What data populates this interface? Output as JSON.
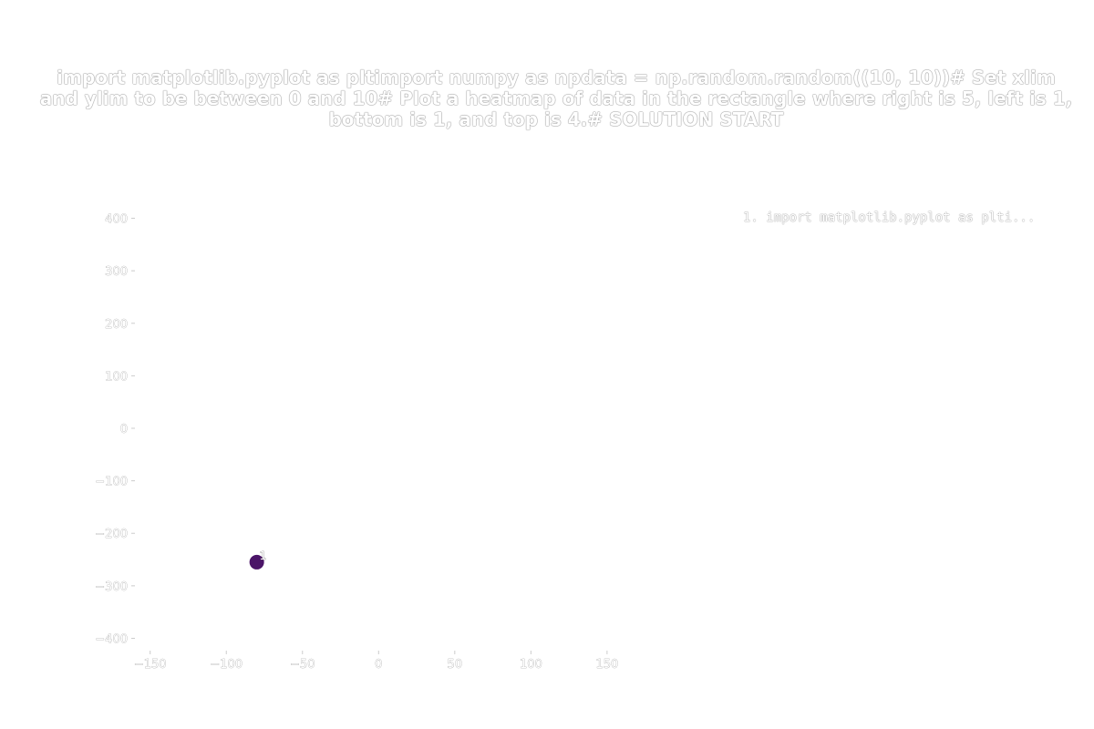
{
  "chart_data": {
    "type": "scatter",
    "title": "import matplotlib.pyplot as pltimport numpy as npdata = np.random.random((10, 10))# Set xlim and ylim to be between 0 and 10# Plot a heatmap of data in the rectangle where right is 5, left is 1, bottom is 1, and top is 4.# SOLUTION START",
    "xlabel": "",
    "ylabel": "",
    "xlim": [
      -160,
      180
    ],
    "ylim": [
      -420,
      420
    ],
    "x_ticks": [
      -150,
      -100,
      -50,
      0,
      50,
      100,
      150
    ],
    "y_ticks": [
      -400,
      -300,
      -200,
      -100,
      0,
      100,
      200,
      300,
      400
    ],
    "x_tick_labels": [
      "−150",
      "−100",
      "−50",
      "0",
      "50",
      "100",
      "150"
    ],
    "y_tick_labels": [
      "−400",
      "−300",
      "−200",
      "−100",
      "0",
      "100",
      "200",
      "300",
      "400"
    ],
    "points": [
      {
        "x": -80,
        "y": -255,
        "label": "1",
        "color": "#4b1468"
      }
    ],
    "legend": {
      "placement": "top-right",
      "entries": [
        "1. import matplotlib.pyplot as plti..."
      ]
    },
    "grid": false
  }
}
